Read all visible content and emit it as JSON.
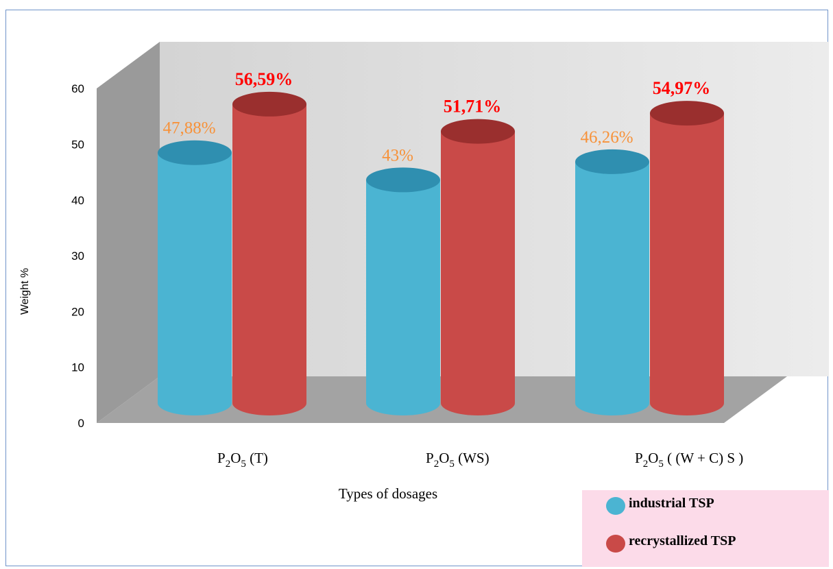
{
  "chart_data": {
    "type": "bar",
    "style": "3d-cylinder",
    "categories": [
      {
        "base": "P",
        "sub1": "2",
        "mid": "O",
        "sub2": "5",
        "tail": " (T)"
      },
      {
        "base": "P",
        "sub1": "2",
        "mid": "O",
        "sub2": "5",
        "tail": " (WS)"
      },
      {
        "base": "P",
        "sub1": "2",
        "mid": "O",
        "sub2": "5",
        "tail": " ( (W + C) S )"
      }
    ],
    "series": [
      {
        "name": "industrial TSP",
        "color": "#4bb4d2",
        "top_color": "#2f8fb0",
        "label_color": "#f7923a",
        "values": [
          47.88,
          43,
          46.26
        ],
        "labels": [
          "47,88%",
          "43%",
          "46,26%"
        ]
      },
      {
        "name": "recrystallized TSP",
        "color": "#c94a48",
        "top_color": "#9a2f2e",
        "label_color": "#ff0000",
        "values": [
          56.59,
          51.71,
          54.97
        ],
        "labels": [
          "56,59%",
          "51,71%",
          "54,97%"
        ]
      }
    ],
    "xlabel": "Types of dosages",
    "ylabel": "Weight %",
    "ylim": [
      0,
      60
    ],
    "yticks": [
      0,
      10,
      20,
      30,
      40,
      50,
      60
    ],
    "grid": false,
    "legend_position": "bottom-right",
    "legend_background": "#fcdbe9"
  }
}
